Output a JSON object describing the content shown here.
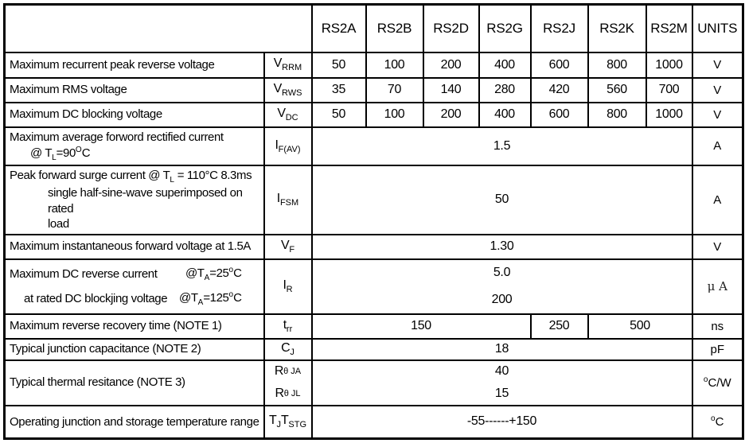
{
  "header": {
    "corner": "",
    "devices": [
      "RS2A",
      "RS2B",
      "RS2D",
      "RS2G",
      "RS2J",
      "RS2K",
      "RS2M"
    ],
    "units": "UNITS"
  },
  "rows": {
    "vrrm": {
      "desc": "Maximum recurrent peak reverse voltage",
      "symbol": "V_{RRM}",
      "values": [
        "50",
        "100",
        "200",
        "400",
        "600",
        "800",
        "1000"
      ],
      "unit": "V"
    },
    "vrws": {
      "desc": "Maximum RMS voltage",
      "symbol": "V_{RWS}",
      "values": [
        "35",
        "70",
        "140",
        "280",
        "420",
        "560",
        "700"
      ],
      "unit": "V"
    },
    "vdc": {
      "desc": "Maximum DC blocking voltage",
      "symbol": "V_{DC}",
      "values": [
        "50",
        "100",
        "200",
        "400",
        "600",
        "800",
        "1000"
      ],
      "unit": "V"
    },
    "ifav": {
      "desc_line1": "Maximum average forword rectified current",
      "desc_line2": "@ T_{L}=90^{O}C",
      "symbol": "I_{F(AV)}",
      "value": "1.5",
      "unit": "A"
    },
    "ifsm": {
      "desc_line1": "Peak forward surge current @ T_{L} = 110°C 8.3ms",
      "desc_line2": "single half-sine-wave superimposed on rated",
      "desc_line3": "load",
      "symbol": "I_{FSM}",
      "value": "50",
      "unit": "A"
    },
    "vf": {
      "desc": "Maximum instantaneous forward voltage at 1.5A",
      "symbol": "V_{F}",
      "value": "1.30",
      "unit": "V"
    },
    "ir": {
      "desc1_left": "Maximum DC reverse current",
      "desc1_right": "@T_{A}=25^{o}C",
      "desc2_left": "at rated DC blockjing voltage",
      "desc2_right": "@T_{A}=125^{o}C",
      "symbol": "I_{R}",
      "value_top": "5.0",
      "value_bottom": "200",
      "unit": "μ A"
    },
    "trr": {
      "desc": "Maximum reverse recovery time (NOTE 1)",
      "symbol": "t_{rr}",
      "value_a": "150",
      "value_b": "250",
      "value_c": "500",
      "unit": "ns"
    },
    "cj": {
      "desc": "Typical junction capacitance (NOTE 2)",
      "symbol": "C_{J}",
      "value": "18",
      "unit": "pF"
    },
    "rth": {
      "desc": "Typical thermal resitance (NOTE 3)",
      "symbol_top": "R _{θ JA}",
      "symbol_bottom": "R _{θ JL}",
      "value_top": "40",
      "value_bottom": "15",
      "unit": "^{o}C/W"
    },
    "tstg": {
      "desc": "Operating junction and storage temperature range",
      "symbol": "T_{J}T_{STG}",
      "value": "-55------+150",
      "unit": "^{o}C"
    }
  }
}
